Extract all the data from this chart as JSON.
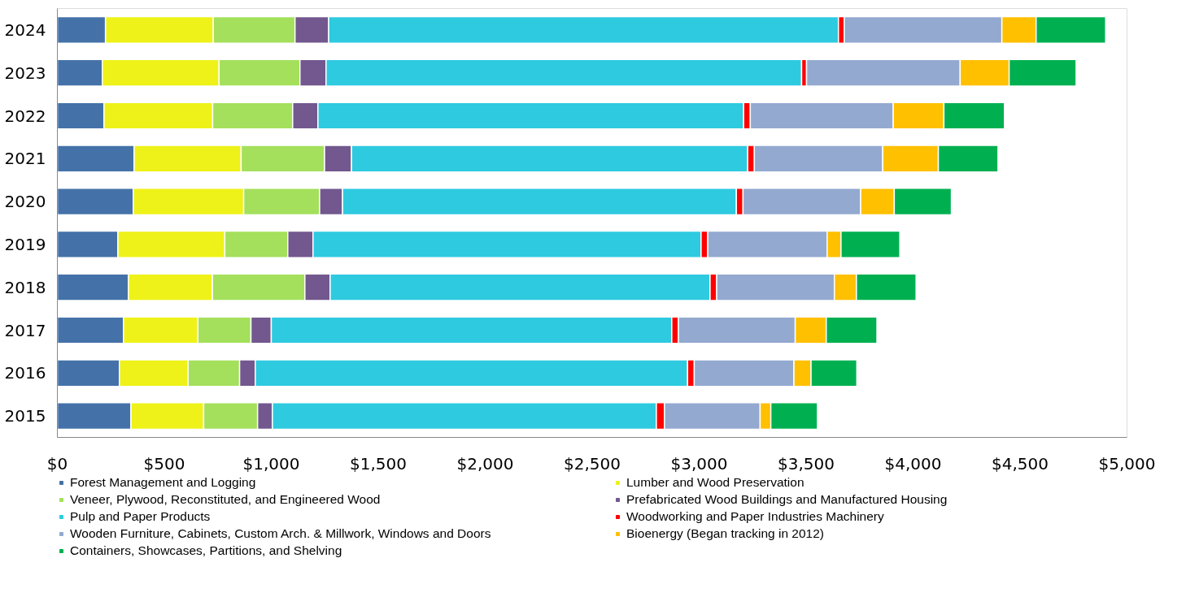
{
  "chart_data": {
    "type": "bar",
    "orientation": "horizontal",
    "stacked": true,
    "categories": [
      "2024",
      "2023",
      "2022",
      "2021",
      "2020",
      "2019",
      "2018",
      "2017",
      "2016",
      "2015"
    ],
    "series": [
      {
        "name": "Forest Management and Logging",
        "color": "#4472a8",
        "values": [
          225,
          210,
          218,
          359,
          355,
          283,
          332,
          309,
          290,
          344
        ]
      },
      {
        "name": "Lumber and Wood Preservation",
        "color": "#eef218",
        "values": [
          504,
          546,
          508,
          500,
          516,
          500,
          393,
          348,
          321,
          340
        ]
      },
      {
        "name": "Veneer, Plywood, Reconstituted, and Engineered Wood",
        "color": "#a4e05c",
        "values": [
          382,
          378,
          374,
          390,
          355,
          294,
          432,
          248,
          241,
          252
        ]
      },
      {
        "name": "Prefabricated Wood Buildings and Manufactured Housing",
        "color": "#72588e",
        "values": [
          157,
          122,
          118,
          126,
          107,
          118,
          118,
          95,
          73,
          69
        ]
      },
      {
        "name": "Pulp and Paper Products",
        "color": "#2ecae0",
        "values": [
          2383,
          2223,
          1990,
          1852,
          1841,
          1814,
          1776,
          1872,
          2021,
          1795
        ]
      },
      {
        "name": "Woodworking and Paper Industries Machinery",
        "color": "#ff0000",
        "values": [
          27,
          23,
          31,
          31,
          31,
          31,
          31,
          31,
          31,
          38
        ]
      },
      {
        "name": "Wooden Furniture, Cabinets, Custom Arch. & Millwork, Windows and Doors",
        "color": "#93a9d0",
        "values": [
          737,
          718,
          668,
          600,
          550,
          558,
          550,
          546,
          466,
          447
        ]
      },
      {
        "name": "Bioenergy (Began tracking in 2012)",
        "color": "#ffc000",
        "values": [
          160,
          229,
          237,
          260,
          157,
          65,
          103,
          145,
          80,
          50
        ]
      },
      {
        "name": "Containers, Showcases, Partitions, and Shelving",
        "color": "#00b050",
        "values": [
          325,
          313,
          283,
          279,
          267,
          275,
          279,
          237,
          214,
          218
        ]
      }
    ],
    "xlim": [
      0,
      5000
    ],
    "xticks": [
      {
        "value": 0,
        "label": "$0"
      },
      {
        "value": 500,
        "label": "$500"
      },
      {
        "value": 1000,
        "label": "$1,000"
      },
      {
        "value": 1500,
        "label": "$1,500"
      },
      {
        "value": 2000,
        "label": "$2,000"
      },
      {
        "value": 2500,
        "label": "$2,500"
      },
      {
        "value": 3000,
        "label": "$3,000"
      },
      {
        "value": 3500,
        "label": "$3,500"
      },
      {
        "value": 4000,
        "label": "$4,000"
      },
      {
        "value": 4500,
        "label": "$4,500"
      },
      {
        "value": 5000,
        "label": "$5,000"
      }
    ],
    "grid": false,
    "legend": "bottom"
  }
}
